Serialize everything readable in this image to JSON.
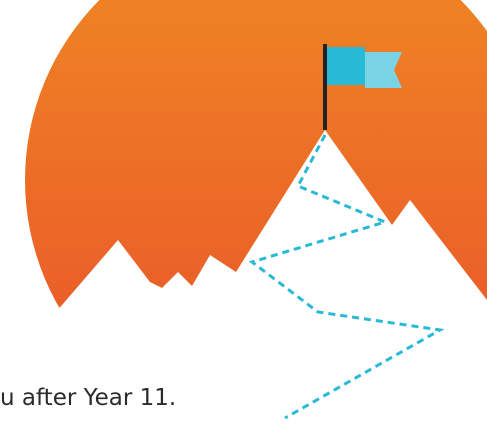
{
  "caption": "u after Year 11."
}
